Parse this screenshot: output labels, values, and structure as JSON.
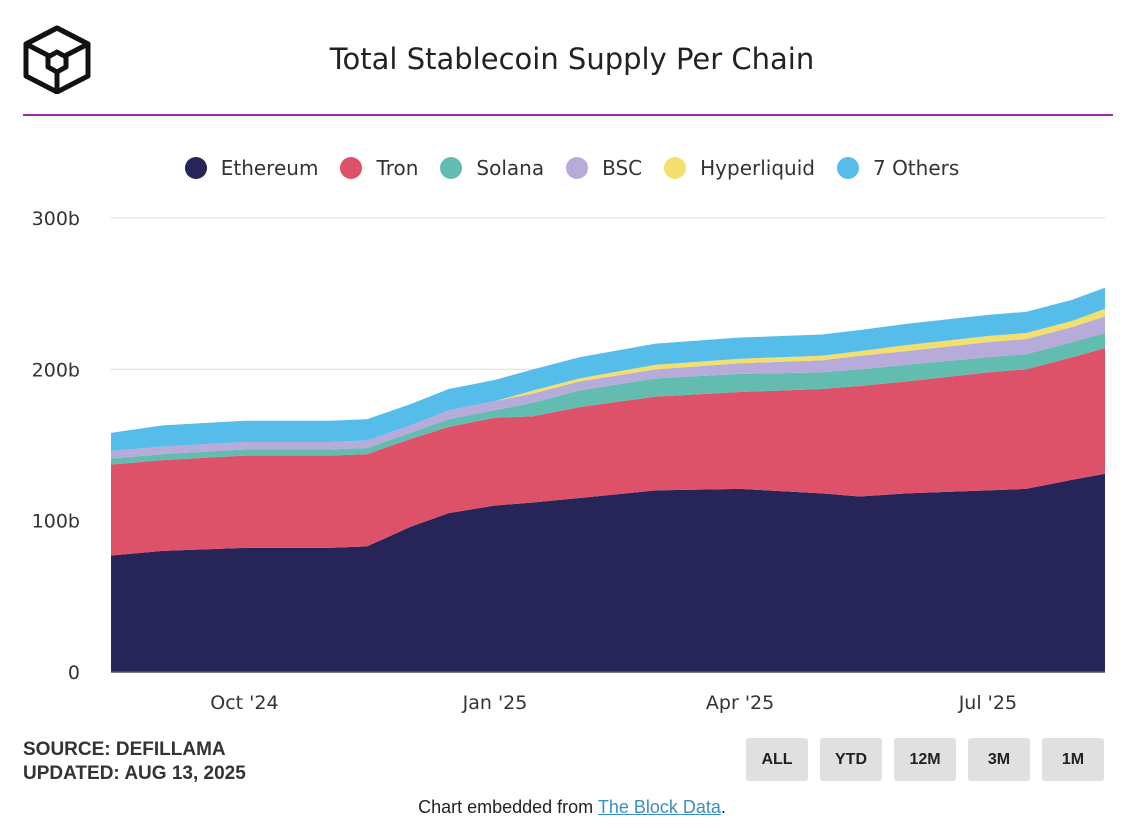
{
  "header": {
    "title": "Total Stablecoin Supply Per Chain"
  },
  "footer": {
    "source": "SOURCE: DEFILLAMA",
    "updated": "UPDATED: AUG 13, 2025",
    "embed_prefix": "Chart embedded from ",
    "embed_link": "The Block Data",
    "embed_suffix": "."
  },
  "range_buttons": [
    "ALL",
    "YTD",
    "12M",
    "3M",
    "1M"
  ],
  "colors": {
    "accent_rule": "#9c27b0",
    "ethereum": "#272458",
    "tron": "#dd5269",
    "solana": "#62bcaf",
    "bsc": "#b6abd9",
    "hyperliquid": "#f3df6d",
    "others": "#56bdeb"
  },
  "chart_data": {
    "type": "area",
    "stacked": true,
    "title": "Total Stablecoin Supply Per Chain",
    "x_ticks": [
      "Oct '24",
      "Jan '25",
      "Apr '25",
      "Jul '25"
    ],
    "y_ticks": [
      "0",
      "100b",
      "200b",
      "300b"
    ],
    "ylim": [
      0,
      300
    ],
    "grid": true,
    "legend_position": "top",
    "x": [
      "2024-08-13",
      "2024-09-01",
      "2024-10-01",
      "2024-11-01",
      "2024-11-15",
      "2024-12-01",
      "2024-12-15",
      "2025-01-01",
      "2025-01-15",
      "2025-02-01",
      "2025-03-01",
      "2025-04-01",
      "2025-05-01",
      "2025-05-15",
      "2025-06-01",
      "2025-07-01",
      "2025-07-15",
      "2025-08-01",
      "2025-08-13"
    ],
    "series": [
      {
        "name": "Ethereum",
        "color": "#272458",
        "values": [
          77,
          80,
          82,
          82,
          83,
          96,
          105,
          110,
          112,
          115,
          120,
          121,
          118,
          116,
          118,
          120,
          121,
          127,
          131
        ]
      },
      {
        "name": "Tron",
        "color": "#dd5269",
        "values": [
          60,
          60,
          61,
          61,
          61,
          58,
          57,
          58,
          57,
          60,
          62,
          64,
          69,
          73,
          74,
          78,
          79,
          81,
          83
        ]
      },
      {
        "name": "Solana",
        "color": "#62bcaf",
        "values": [
          4,
          4,
          4,
          4,
          4,
          4,
          5,
          5,
          9,
          11,
          12,
          12,
          11,
          11,
          11,
          10,
          10,
          10,
          10
        ]
      },
      {
        "name": "BSC",
        "color": "#b6abd9",
        "values": [
          5,
          5,
          5,
          5,
          5,
          5,
          6,
          6,
          6,
          6,
          6,
          7,
          8,
          9,
          9,
          10,
          10,
          10,
          11
        ]
      },
      {
        "name": "Hyperliquid",
        "color": "#f3df6d",
        "values": [
          0,
          0,
          0,
          0,
          0,
          0,
          0,
          0,
          2,
          2,
          3,
          3,
          3,
          3,
          4,
          4,
          4,
          4,
          5
        ]
      },
      {
        "name": "7 Others",
        "color": "#56bdeb",
        "values": [
          12,
          14,
          14,
          14,
          14,
          14,
          14,
          14,
          14,
          14,
          14,
          14,
          14,
          14,
          14,
          14,
          14,
          14,
          14
        ]
      }
    ]
  }
}
